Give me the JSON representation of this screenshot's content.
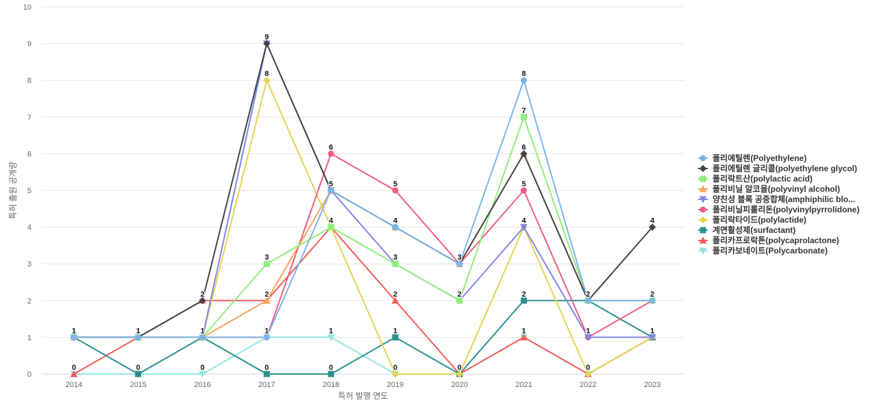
{
  "chart_data": {
    "type": "line",
    "title": "",
    "xlabel": "특허 발행 연도",
    "ylabel": "특허 출원 공개량",
    "ylim": [
      0,
      10
    ],
    "yticks": [
      0,
      1,
      2,
      3,
      4,
      5,
      6,
      7,
      8,
      9,
      10
    ],
    "grid": true,
    "legend_position": "right",
    "categories": [
      "2014",
      "2015",
      "2016",
      "2017",
      "2018",
      "2019",
      "2020",
      "2021",
      "2022",
      "2023"
    ],
    "series": [
      {
        "name": "폴리에틸렌(Polyethylene)",
        "color": "#7cb5ec",
        "marker": "circle",
        "values": [
          1,
          1,
          1,
          1,
          5,
          4,
          3,
          8,
          2,
          2
        ]
      },
      {
        "name": "폴리에틸렌 글리콜(polyethylene glycol)",
        "color": "#434348",
        "marker": "diamond",
        "values": [
          1,
          1,
          2,
          9,
          5,
          4,
          3,
          6,
          2,
          4
        ]
      },
      {
        "name": "폴리락트산(polylactic acid)",
        "color": "#90ed7d",
        "marker": "square",
        "values": [
          1,
          1,
          1,
          3,
          4,
          3,
          2,
          7,
          2,
          2
        ]
      },
      {
        "name": "폴리비닐 알코올(polyvinyl alcohol)",
        "color": "#f7a35c",
        "marker": "triangle",
        "values": [
          1,
          1,
          1,
          2,
          5,
          4,
          3,
          6,
          2,
          2
        ]
      },
      {
        "name": "양친성 블록 공중합체(amphiphilic blo...",
        "color": "#8085e9",
        "marker": "triangle-down",
        "values": [
          1,
          1,
          1,
          9,
          5,
          3,
          2,
          4,
          1,
          1
        ]
      },
      {
        "name": "폴리비닐피롤리돈(polyvinylpyrrolidone)",
        "color": "#f15c80",
        "marker": "circle",
        "values": [
          1,
          1,
          1,
          1,
          6,
          5,
          3,
          5,
          1,
          2
        ]
      },
      {
        "name": "폴리락타이드(polylactide)",
        "color": "#e4d354",
        "marker": "diamond",
        "values": [
          1,
          1,
          1,
          8,
          4,
          0,
          0,
          4,
          0,
          1
        ]
      },
      {
        "name": "계면활성제(surfactant)",
        "color": "#2b908f",
        "marker": "square",
        "values": [
          1,
          0,
          1,
          0,
          0,
          1,
          0,
          2,
          2,
          1
        ]
      },
      {
        "name": "폴리카프로락톤(polycaprolactone)",
        "color": "#f45b5b",
        "marker": "triangle",
        "values": [
          0,
          1,
          2,
          2,
          4,
          2,
          0,
          1,
          0,
          1
        ]
      },
      {
        "name": "폴리카보네이트(Polycarbonate)",
        "color": "#91e8e1",
        "marker": "triangle-down",
        "values": [
          0,
          0,
          0,
          1,
          1,
          0,
          0,
          1,
          0,
          1
        ]
      }
    ],
    "data_labels": [
      {
        "category": "2014",
        "value": 1,
        "text": "1"
      },
      {
        "category": "2014",
        "value": 0,
        "text": "0"
      },
      {
        "category": "2015",
        "value": 1,
        "text": "1"
      },
      {
        "category": "2015",
        "value": 0,
        "text": "0"
      },
      {
        "category": "2016",
        "value": 2,
        "text": "2"
      },
      {
        "category": "2016",
        "value": 1,
        "text": "1"
      },
      {
        "category": "2016",
        "value": 0,
        "text": "0"
      },
      {
        "category": "2017",
        "value": 9,
        "text": "9"
      },
      {
        "category": "2017",
        "value": 8,
        "text": "8"
      },
      {
        "category": "2017",
        "value": 3,
        "text": "3"
      },
      {
        "category": "2017",
        "value": 2,
        "text": "2"
      },
      {
        "category": "2017",
        "value": 1,
        "text": "1"
      },
      {
        "category": "2017",
        "value": 0,
        "text": "0"
      },
      {
        "category": "2018",
        "value": 6,
        "text": "6"
      },
      {
        "category": "2018",
        "value": 5,
        "text": "5"
      },
      {
        "category": "2018",
        "value": 4,
        "text": "4"
      },
      {
        "category": "2018",
        "value": 1,
        "text": "1"
      },
      {
        "category": "2018",
        "value": 0,
        "text": "0"
      },
      {
        "category": "2019",
        "value": 5,
        "text": "5"
      },
      {
        "category": "2019",
        "value": 4,
        "text": "4"
      },
      {
        "category": "2019",
        "value": 3,
        "text": "3"
      },
      {
        "category": "2019",
        "value": 2,
        "text": "2"
      },
      {
        "category": "2019",
        "value": 1,
        "text": "1"
      },
      {
        "category": "2019",
        "value": 0,
        "text": "0"
      },
      {
        "category": "2020",
        "value": 3,
        "text": "3"
      },
      {
        "category": "2020",
        "value": 2,
        "text": "2"
      },
      {
        "category": "2020",
        "value": 0,
        "text": "0"
      },
      {
        "category": "2021",
        "value": 8,
        "text": "8"
      },
      {
        "category": "2021",
        "value": 7,
        "text": "7"
      },
      {
        "category": "2021",
        "value": 6,
        "text": "6"
      },
      {
        "category": "2021",
        "value": 5,
        "text": "5"
      },
      {
        "category": "2021",
        "value": 4,
        "text": "4"
      },
      {
        "category": "2021",
        "value": 2,
        "text": "2"
      },
      {
        "category": "2021",
        "value": 1,
        "text": "1"
      },
      {
        "category": "2022",
        "value": 2,
        "text": "2"
      },
      {
        "category": "2022",
        "value": 1,
        "text": "1"
      },
      {
        "category": "2022",
        "value": 0,
        "text": "0"
      },
      {
        "category": "2023",
        "value": 4,
        "text": "4"
      },
      {
        "category": "2023",
        "value": 2,
        "text": "2"
      },
      {
        "category": "2023",
        "value": 1,
        "text": "1"
      }
    ]
  }
}
